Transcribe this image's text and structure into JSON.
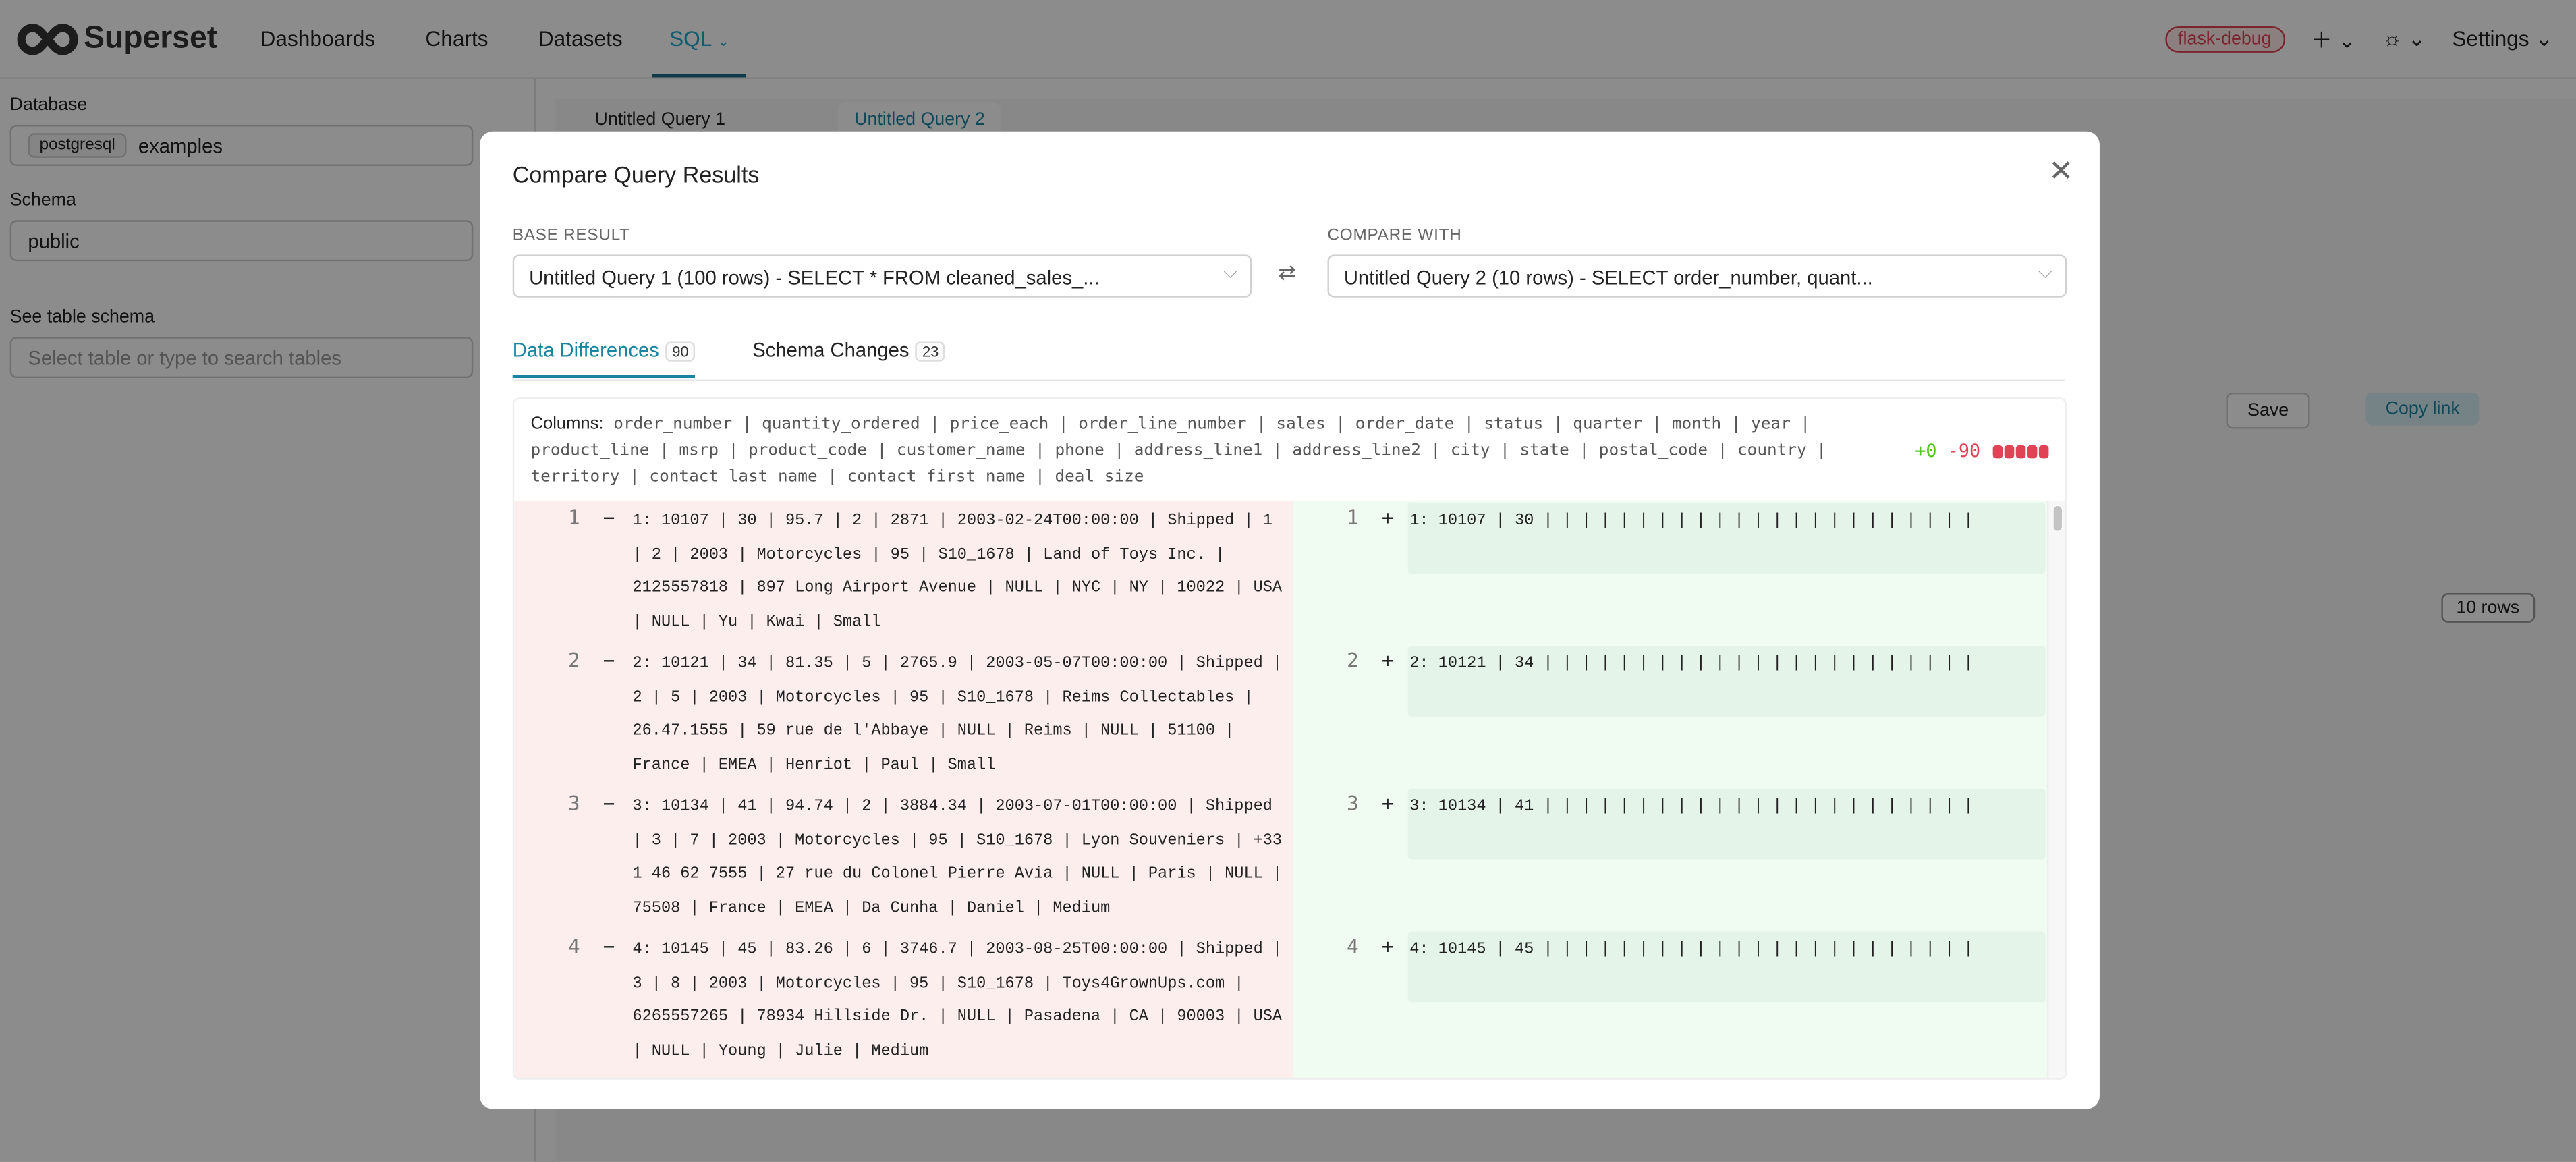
{
  "nav": {
    "brand": "Superset",
    "items": [
      "Dashboards",
      "Charts",
      "Datasets",
      "SQL"
    ],
    "env_badge": "flask-debug",
    "settings": "Settings"
  },
  "sidebar": {
    "database_label": "Database",
    "db_engine": "postgresql",
    "db_name": "examples",
    "schema_label": "Schema",
    "schema": "public",
    "table_label": "See table schema",
    "table_placeholder": "Select table or type to search tables"
  },
  "query_tabs": [
    "Untitled Query 1",
    "Untitled Query 2"
  ],
  "editor": {
    "save": "Save",
    "copy_link": "Copy link",
    "rows_badge": "10 rows"
  },
  "modal": {
    "title": "Compare Query Results",
    "base_label": "BASE RESULT",
    "base_value": "Untitled Query 1 (100 rows) - SELECT * FROM cleaned_sales_...",
    "compare_label": "COMPARE WITH",
    "compare_value": "Untitled Query 2 (10 rows) - SELECT order_number, quant...",
    "tabs": [
      {
        "label": "Data Differences",
        "count": "90"
      },
      {
        "label": "Schema Changes",
        "count": "23"
      }
    ],
    "columns_label": "Columns:",
    "columns": "order_number | quantity_ordered | price_each | order_line_number | sales | order_date | status | quarter | month | year | product_line | msrp | product_code | customer_name | phone | address_line1 | address_line2 | city | state | postal_code | country | territory | contact_last_name | contact_first_name | deal_size",
    "added": "+0",
    "removed": "-90",
    "rows": [
      {
        "n": "1",
        "left": "1: 10107 | 30 | 95.7 | 2 | 2871 | 2003-02-24T00:00:00 | Shipped | 1 | 2 | 2003 | Motorcycles | 95 | S10_1678 | Land of Toys Inc. | 2125557818 | 897 Long Airport Avenue | NULL | NYC | NY | 10022 | USA | NULL | Yu | Kwai | Small",
        "right": "1: 10107 | 30 | | | | | | | | | | | | | | | | | | | | | | |"
      },
      {
        "n": "2",
        "left": "2: 10121 | 34 | 81.35 | 5 | 2765.9 | 2003-05-07T00:00:00 | Shipped | 2 | 5 | 2003 | Motorcycles | 95 | S10_1678 | Reims Collectables | 26.47.1555 | 59 rue de l'Abbaye | NULL | Reims | NULL | 51100 | France | EMEA | Henriot | Paul | Small",
        "right": "2: 10121 | 34 | | | | | | | | | | | | | | | | | | | | | | |"
      },
      {
        "n": "3",
        "left": "3: 10134 | 41 | 94.74 | 2 | 3884.34 | 2003-07-01T00:00:00 | Shipped | 3 | 7 | 2003 | Motorcycles | 95 | S10_1678 | Lyon Souveniers | +33 1 46 62 7555 | 27 rue du Colonel Pierre Avia | NULL | Paris | NULL | 75508 | France | EMEA | Da Cunha | Daniel | Medium",
        "right": "3: 10134 | 41 | | | | | | | | | | | | | | | | | | | | | | |"
      },
      {
        "n": "4",
        "left": "4: 10145 | 45 | 83.26 | 6 | 3746.7 | 2003-08-25T00:00:00 | Shipped | 3 | 8 | 2003 | Motorcycles | 95 | S10_1678 | Toys4GrownUps.com | 6265557265 | 78934 Hillside Dr. | NULL | Pasadena | CA | 90003 | USA | NULL | Young | Julie | Medium",
        "right": "4: 10145 | 45 | | | | | | | | | | | | | | | | | | | | | | |"
      }
    ],
    "colors": {
      "accent": "#1a85a0",
      "removed": "#e04355",
      "added": "#52c41a",
      "removed_bg": "#fdeeee",
      "added_bg": "#f0fcf2"
    }
  }
}
